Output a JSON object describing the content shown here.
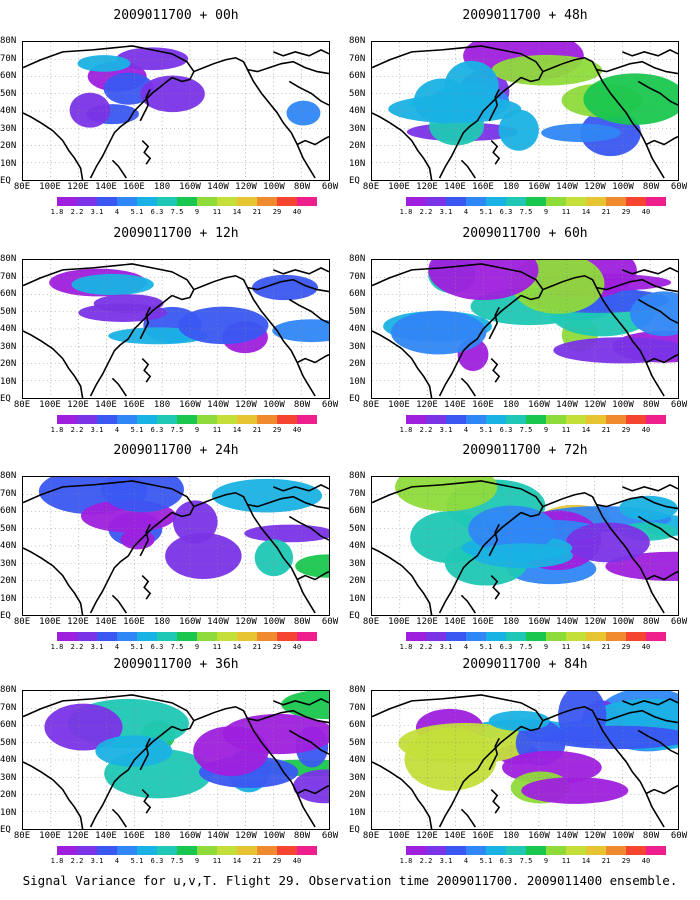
{
  "caption": "Signal Variance for u,v,T. Flight 29. Observation time 2009011700. 2009011400 ensemble.",
  "lat_labels": [
    "80N",
    "70N",
    "60N",
    "50N",
    "40N",
    "30N",
    "20N",
    "10N",
    "EQ"
  ],
  "lon_labels": [
    "80E",
    "100E",
    "120E",
    "140E",
    "160E",
    "180",
    "160W",
    "140W",
    "120W",
    "100W",
    "80W",
    "60W"
  ],
  "colorbar": {
    "labels": [
      "1.8",
      "2.2",
      "3.1",
      "4",
      "5.1",
      "6.3",
      "7.5",
      "9",
      "11",
      "14",
      "21",
      "29",
      "40"
    ],
    "colors": [
      "#9f1fde",
      "#7a33e6",
      "#3a57f2",
      "#2f86f5",
      "#19b2e5",
      "#1ec8b4",
      "#19c74e",
      "#8fdb3a",
      "#c4df3a",
      "#e6c432",
      "#f08a2f",
      "#f5442f",
      "#ee1f8c"
    ]
  },
  "panels": [
    {
      "title": "2009011700 + 00h"
    },
    {
      "title": "2009011700 + 48h"
    },
    {
      "title": "2009011700 + 12h"
    },
    {
      "title": "2009011700 + 60h"
    },
    {
      "title": "2009011700 + 24h"
    },
    {
      "title": "2009011700 + 72h"
    },
    {
      "title": "2009011700 + 36h"
    },
    {
      "title": "2009011700 + 84h"
    }
  ]
}
